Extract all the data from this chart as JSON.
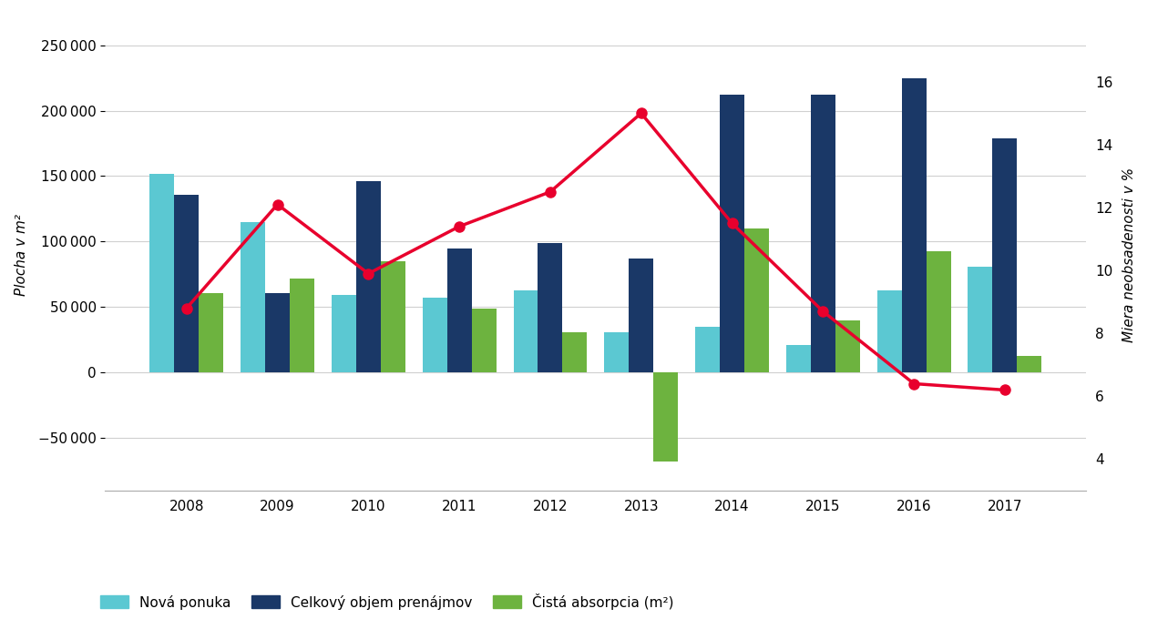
{
  "years": [
    2008,
    2009,
    2010,
    2011,
    2012,
    2013,
    2014,
    2015,
    2016,
    2017
  ],
  "nova_ponuka": [
    152000,
    115000,
    59000,
    57000,
    63000,
    31000,
    35000,
    21000,
    63000,
    81000
  ],
  "celkovy_objem": [
    136000,
    61000,
    146000,
    95000,
    99000,
    87000,
    212000,
    212000,
    225000,
    179000
  ],
  "cista_absorpcia": [
    61000,
    72000,
    85000,
    49000,
    31000,
    -68000,
    110000,
    40000,
    93000,
    13000
  ],
  "miera_neobsadenosti": [
    8.8,
    12.1,
    9.9,
    11.4,
    12.5,
    15.0,
    11.5,
    8.7,
    6.4,
    6.2
  ],
  "bar_width": 0.27,
  "color_nova_ponuka": "#5bc8d2",
  "color_celkovy_objem": "#1a3867",
  "color_cista_absorpcia": "#6db33f",
  "color_miera": "#e8002d",
  "ylabel_left": "Plocha v m²",
  "ylabel_right": "Miera neobsadenosti v %",
  "ylim_left": [
    -90000,
    270000
  ],
  "ylim_right": [
    3.0,
    18.0
  ],
  "yticks_left": [
    -50000,
    0,
    50000,
    100000,
    150000,
    200000,
    250000
  ],
  "yticks_right": [
    4,
    6,
    8,
    10,
    12,
    14,
    16
  ],
  "legend_nova_ponuka": "Nová ponuka",
  "legend_celkovy": "Celkový objem prenájmov",
  "legend_cista": "Čistá absorpcia (m²)",
  "legend_miera": "Miera neobsadenosti",
  "background_color": "#ffffff",
  "grid_color": "#d0d0d0"
}
